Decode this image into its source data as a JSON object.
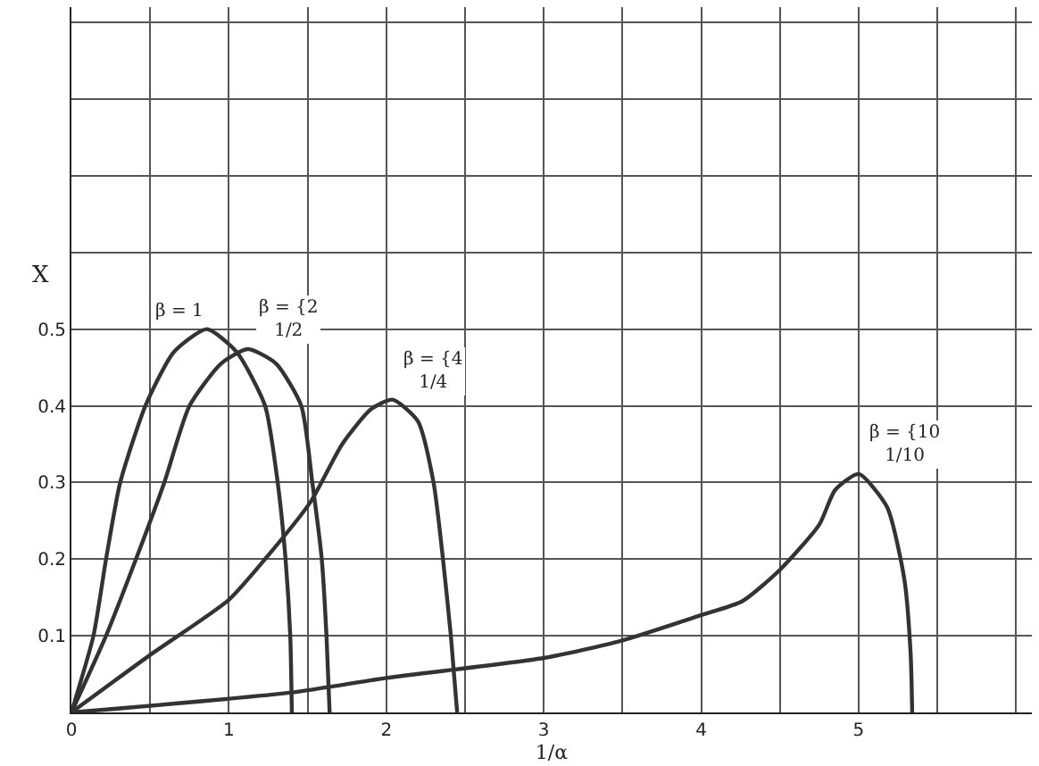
{
  "chart_data": {
    "type": "line",
    "xlabel": "1/α",
    "ylabel": "X",
    "xlim": [
      0,
      6.1
    ],
    "ylim": [
      0,
      0.92
    ],
    "xticks": [
      0,
      {
        "value": 0.5,
        "label": null
      },
      1,
      {
        "value": 1.5,
        "label": null
      },
      2,
      {
        "value": 2.5,
        "label": null
      },
      3,
      {
        "value": 3.5,
        "label": null
      },
      4,
      {
        "value": 4.5,
        "label": null
      },
      5,
      {
        "value": 5.5,
        "label": null
      },
      {
        "value": 6,
        "label": null
      }
    ],
    "yticks": [
      {
        "value": 0,
        "label": null
      },
      0.1,
      0.2,
      0.3,
      0.4,
      0.5,
      {
        "value": 0.6,
        "label": null
      },
      {
        "value": 0.7,
        "label": null
      },
      {
        "value": 0.8,
        "label": null
      },
      {
        "value": 0.9,
        "label": null
      }
    ],
    "grid": true,
    "legend": false,
    "marker": "none",
    "line_style": "solid",
    "series": [
      {
        "name": "β = 1",
        "color": "#333333",
        "x": [
          0,
          0.14,
          0.22,
          0.31,
          0.47,
          0.65,
          0.86,
          1.05,
          1.23,
          1.31,
          1.36,
          1.39,
          1.4
        ],
        "values": [
          0,
          0.1,
          0.2,
          0.3,
          0.4,
          0.47,
          0.5,
          0.47,
          0.4,
          0.3,
          0.2,
          0.1,
          0
        ]
      },
      {
        "name": "β = {2\n1/2",
        "color": "#333333",
        "x": [
          0,
          0.22,
          0.41,
          0.59,
          0.75,
          0.95,
          1.12,
          1.3,
          1.46,
          1.53,
          1.59,
          1.62,
          1.64
        ],
        "values": [
          0,
          0.1,
          0.2,
          0.3,
          0.4,
          0.455,
          0.474,
          0.455,
          0.4,
          0.3,
          0.2,
          0.1,
          0
        ]
      },
      {
        "name": "β = {4\n1/4",
        "color": "#333333",
        "x": [
          0,
          0.5,
          1,
          1.23,
          1.52,
          1.72,
          1.9,
          2.04,
          2.2,
          2.3,
          2.36,
          2.41,
          2.45
        ],
        "values": [
          0,
          0.075,
          0.147,
          0.2,
          0.275,
          0.35,
          0.395,
          0.408,
          0.38,
          0.3,
          0.2,
          0.1,
          0
        ]
      },
      {
        "name": "β = {10\n1/10",
        "color": "#333333",
        "x": [
          0,
          1.4,
          2,
          3,
          3.5,
          4,
          4.26,
          4.5,
          4.75,
          4.85,
          5,
          5.18,
          5.29,
          5.33,
          5.34
        ],
        "values": [
          0,
          0.026,
          0.045,
          0.071,
          0.094,
          0.127,
          0.145,
          0.186,
          0.245,
          0.29,
          0.311,
          0.268,
          0.174,
          0.077,
          0
        ]
      }
    ]
  }
}
